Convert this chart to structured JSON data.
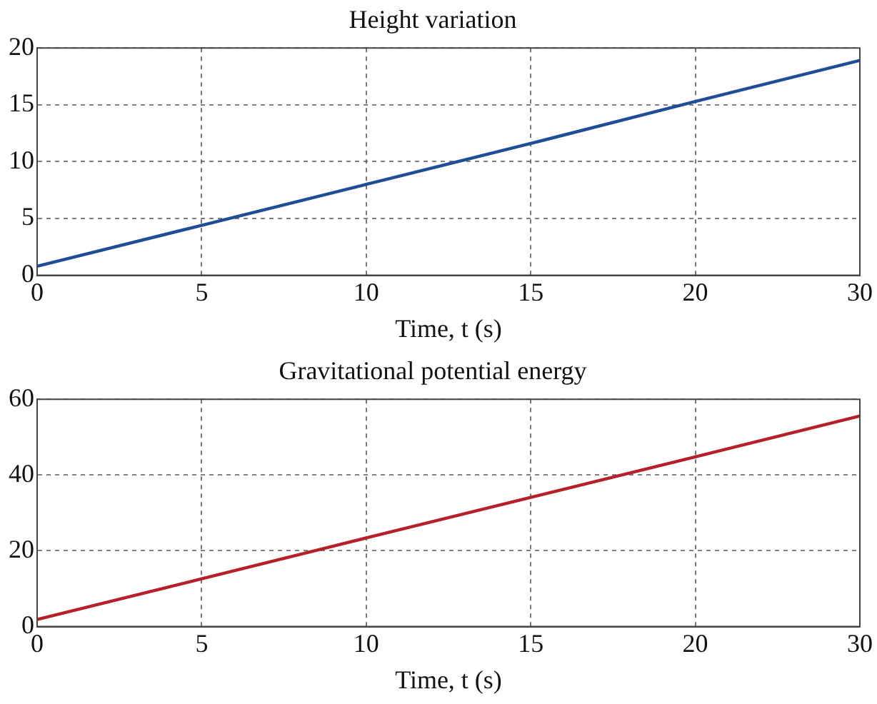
{
  "chart_data": [
    {
      "type": "line",
      "title": "Height variation",
      "xlabel": "Time, t (s)",
      "categories": [
        "0",
        "5",
        "10",
        "15",
        "20",
        "30"
      ],
      "series": [
        {
          "color": "#1f4e96",
          "values": [
            0.8,
            4.4,
            8,
            11.6,
            15.3,
            18.9
          ]
        }
      ],
      "ylim": [
        0,
        20
      ],
      "yticks": [
        0,
        5,
        10,
        15,
        20
      ],
      "grid": true,
      "marker": "none",
      "line_style": "solid"
    },
    {
      "type": "line",
      "title": "Gravitational potential energy",
      "xlabel": "Time, t (s)",
      "categories": [
        "0",
        "5",
        "10",
        "15",
        "20",
        "30"
      ],
      "series": [
        {
          "color": "#b5202a",
          "values": [
            1.9,
            12.6,
            23.4,
            34.1,
            44.8,
            55.6
          ]
        }
      ],
      "ylim": [
        0,
        60
      ],
      "yticks": [
        0,
        20,
        40,
        60
      ],
      "grid": true,
      "marker": "none",
      "line_style": "solid"
    }
  ]
}
